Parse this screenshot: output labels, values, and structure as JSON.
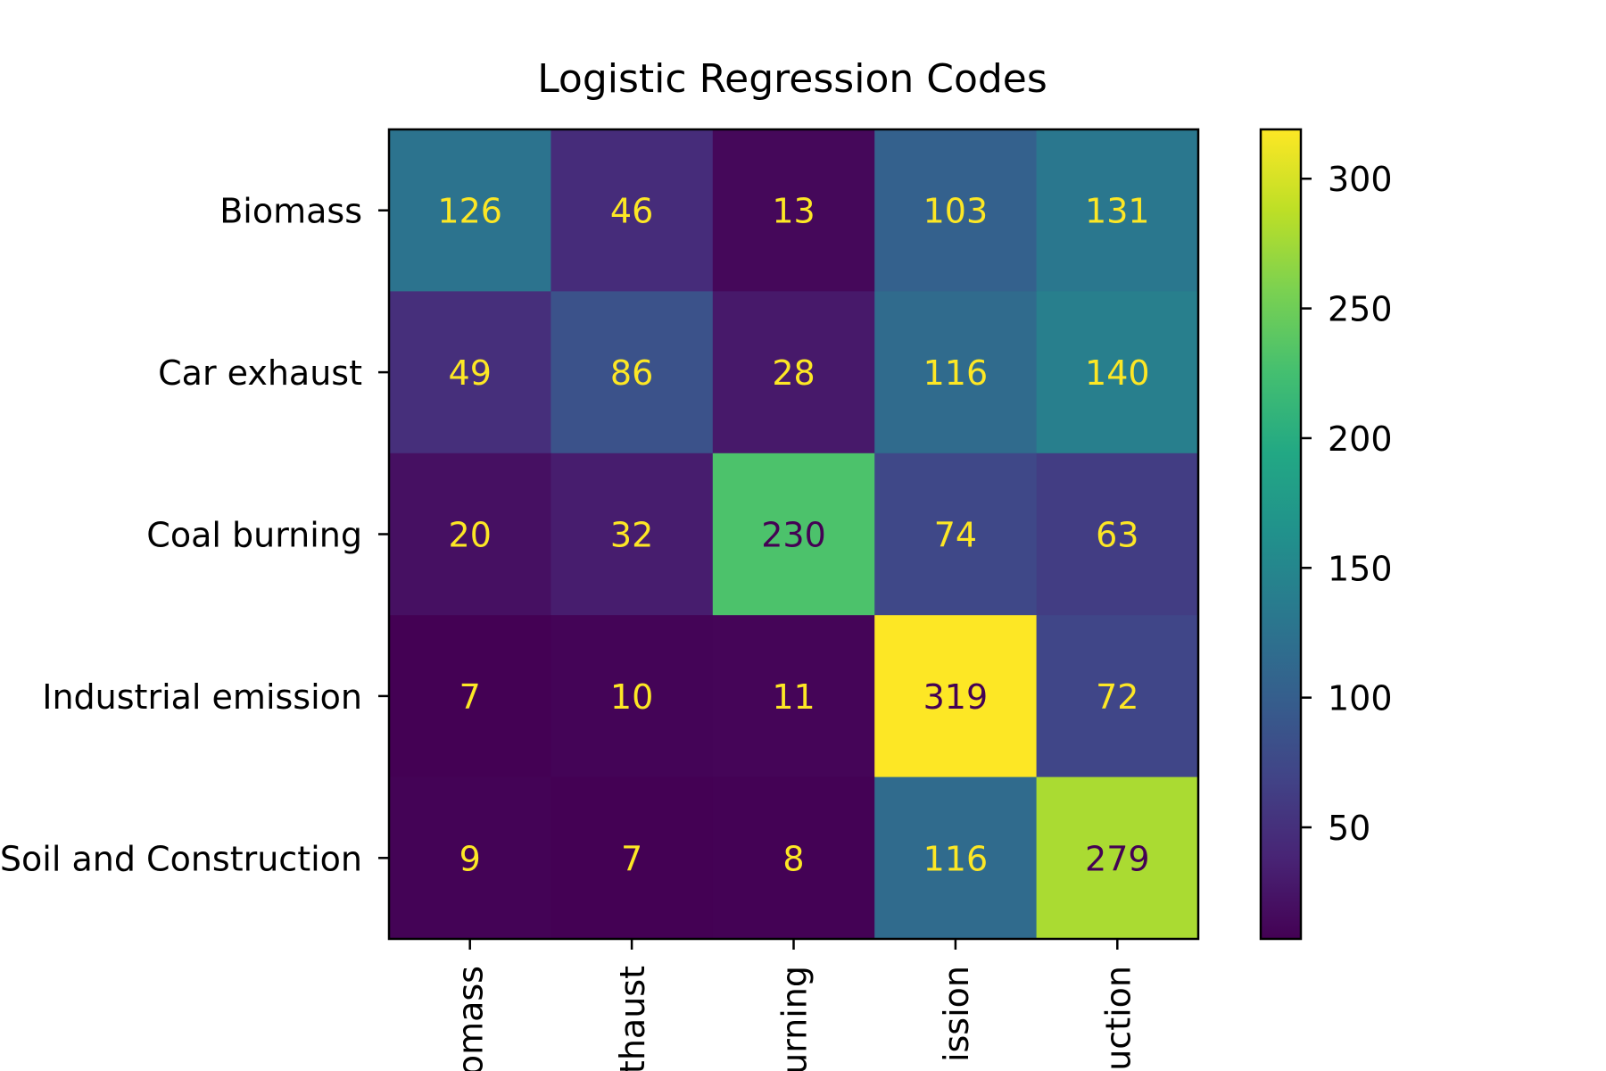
{
  "chart_data": {
    "type": "heatmap",
    "title": "Logistic Regression Codes",
    "ylabels": [
      "Biomass",
      "Car exhaust",
      "Coal burning",
      "Industrial emission",
      "Soil and Construction"
    ],
    "xlabels_visible": [
      "omass",
      "thaust",
      "urning",
      "ission",
      "uction"
    ],
    "values": [
      [
        126,
        46,
        13,
        103,
        131
      ],
      [
        49,
        86,
        28,
        116,
        140
      ],
      [
        20,
        32,
        230,
        74,
        63
      ],
      [
        7,
        10,
        11,
        319,
        72
      ],
      [
        9,
        7,
        8,
        116,
        279
      ]
    ],
    "colormap": "viridis",
    "value_range": [
      7,
      319
    ],
    "colorbar_ticks": [
      50,
      100,
      150,
      200,
      250,
      300
    ],
    "text_color_light": "#fde725",
    "text_color_dark": "#440154"
  }
}
